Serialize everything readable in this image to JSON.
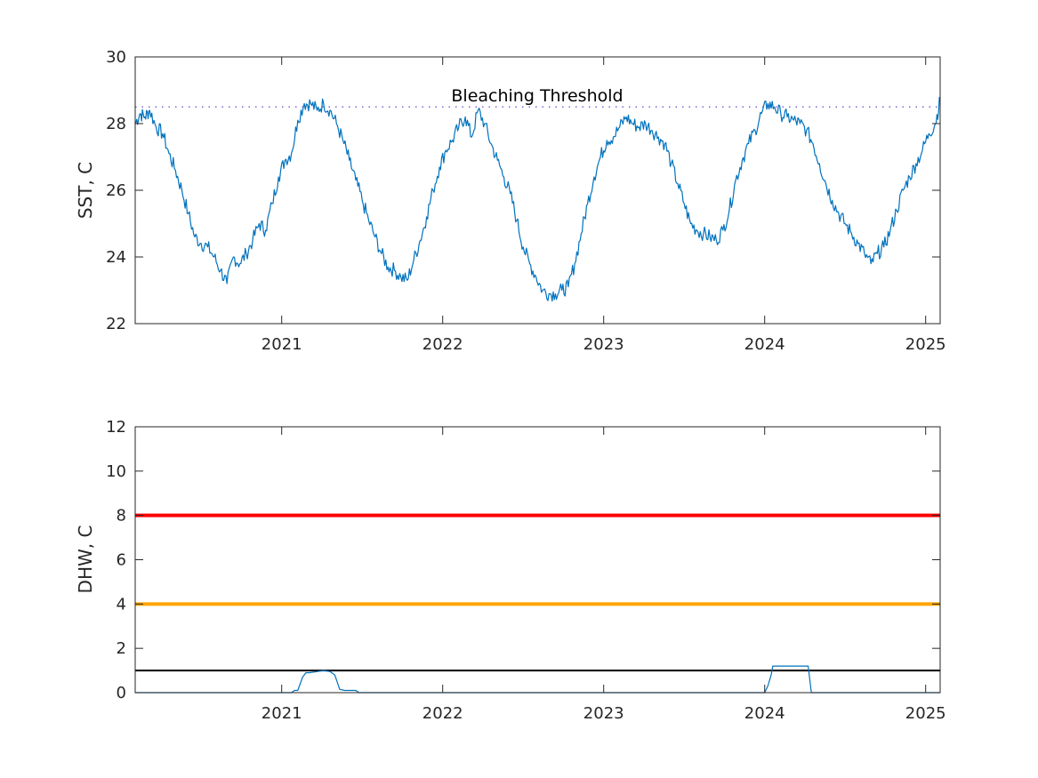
{
  "chart_data": [
    {
      "type": "line",
      "ylabel": "SST, C",
      "xlim": [
        2020.09,
        2025.09
      ],
      "ylim": [
        22,
        30
      ],
      "yticks": [
        22,
        24,
        26,
        28,
        30
      ],
      "xticks": [
        2021,
        2022,
        2023,
        2024,
        2025
      ],
      "xtick_labels": [
        "2021",
        "2022",
        "2023",
        "2024",
        "2025"
      ],
      "grid": false,
      "series_color": "#0072BD",
      "threshold": {
        "label": "Bleaching Threshold",
        "value": 28.5,
        "color": "#7E66D6",
        "style": "dotted"
      },
      "series": [
        {
          "x": [
            2020.09,
            2020.12,
            2020.15,
            2020.18,
            2020.22,
            2020.26,
            2020.3,
            2020.34,
            2020.38,
            2020.42,
            2020.46,
            2020.5,
            2020.54,
            2020.58,
            2020.62,
            2020.66,
            2020.7,
            2020.74,
            2020.78,
            2020.82,
            2020.86,
            2020.9,
            2020.94,
            2020.98,
            2021.02,
            2021.06,
            2021.1,
            2021.14,
            2021.18,
            2021.22,
            2021.26,
            2021.3,
            2021.34,
            2021.38,
            2021.42,
            2021.46,
            2021.5,
            2021.54,
            2021.58,
            2021.62,
            2021.66,
            2021.7,
            2021.74,
            2021.78,
            2021.82,
            2021.86,
            2021.9,
            2021.94,
            2021.98,
            2022.02,
            2022.06,
            2022.1,
            2022.14,
            2022.18,
            2022.22,
            2022.26,
            2022.3,
            2022.34,
            2022.38,
            2022.42,
            2022.46,
            2022.5,
            2022.54,
            2022.58,
            2022.62,
            2022.66,
            2022.7,
            2022.74,
            2022.78,
            2022.82,
            2022.86,
            2022.9,
            2022.94,
            2022.98,
            2023.02,
            2023.06,
            2023.1,
            2023.14,
            2023.18,
            2023.22,
            2023.26,
            2023.3,
            2023.34,
            2023.38,
            2023.42,
            2023.46,
            2023.5,
            2023.54,
            2023.58,
            2023.62,
            2023.66,
            2023.7,
            2023.74,
            2023.78,
            2023.82,
            2023.86,
            2023.9,
            2023.94,
            2023.98,
            2024.02,
            2024.06,
            2024.1,
            2024.14,
            2024.18,
            2024.22,
            2024.26,
            2024.3,
            2024.34,
            2024.38,
            2024.42,
            2024.46,
            2024.5,
            2024.54,
            2024.58,
            2024.62,
            2024.66,
            2024.7,
            2024.74,
            2024.78,
            2024.82,
            2024.86,
            2024.9,
            2024.94,
            2024.98,
            2025.02,
            2025.06,
            2025.09
          ],
          "values": [
            28.0,
            28.3,
            28.2,
            28.4,
            27.9,
            27.7,
            27.1,
            26.6,
            26.0,
            25.3,
            24.6,
            24.4,
            24.3,
            24.0,
            23.6,
            23.2,
            24.0,
            23.8,
            24.1,
            24.5,
            25.0,
            24.8,
            25.6,
            26.4,
            26.9,
            27.1,
            28.1,
            28.6,
            28.6,
            28.4,
            28.6,
            28.4,
            28.0,
            27.5,
            26.9,
            26.3,
            25.7,
            25.1,
            24.6,
            24.1,
            23.7,
            23.6,
            23.4,
            23.3,
            23.9,
            24.5,
            25.2,
            26.0,
            26.7,
            27.2,
            27.5,
            27.9,
            28.2,
            27.6,
            28.4,
            28.0,
            27.4,
            26.9,
            26.4,
            25.9,
            25.1,
            24.3,
            23.8,
            23.4,
            23.0,
            22.9,
            22.9,
            23.0,
            23.1,
            23.8,
            24.7,
            25.6,
            26.4,
            27.0,
            27.5,
            27.6,
            27.9,
            28.2,
            28.0,
            27.9,
            28.0,
            27.8,
            27.6,
            27.4,
            26.8,
            26.2,
            25.6,
            25.0,
            24.8,
            24.7,
            24.6,
            24.5,
            24.8,
            25.4,
            26.3,
            26.9,
            27.4,
            27.8,
            28.3,
            28.6,
            28.5,
            28.3,
            28.2,
            28.1,
            28.0,
            27.8,
            27.4,
            26.8,
            26.2,
            25.7,
            25.3,
            25.0,
            24.7,
            24.4,
            24.1,
            23.8,
            24.1,
            24.3,
            24.8,
            25.4,
            26.0,
            26.4,
            26.8,
            27.2,
            27.7,
            28.0,
            28.7
          ]
        }
      ]
    },
    {
      "type": "line",
      "ylabel": "DHW, C",
      "xlim": [
        2020.09,
        2025.09
      ],
      "ylim": [
        0,
        12
      ],
      "yticks": [
        0,
        2,
        4,
        6,
        8,
        10,
        12
      ],
      "xticks": [
        2021,
        2022,
        2023,
        2024,
        2025
      ],
      "xtick_labels": [
        "2021",
        "2022",
        "2023",
        "2024",
        "2025"
      ],
      "grid": false,
      "series_color": "#0072BD",
      "reference_lines": [
        {
          "value": 8,
          "color": "#FF0000",
          "width": 4
        },
        {
          "value": 4,
          "color": "#FFA500",
          "width": 4
        },
        {
          "value": 1,
          "color": "#000000",
          "width": 2
        }
      ],
      "series": [
        {
          "x": [
            2020.09,
            2021.06,
            2021.08,
            2021.1,
            2021.13,
            2021.15,
            2021.17,
            2021.22,
            2021.26,
            2021.3,
            2021.33,
            2021.36,
            2021.39,
            2021.42,
            2021.46,
            2021.48,
            2022.0,
            2023.0,
            2024.0,
            2024.02,
            2024.04,
            2024.05,
            2024.1,
            2024.2,
            2024.27,
            2024.29,
            2025.09
          ],
          "values": [
            0,
            0,
            0.1,
            0.1,
            0.7,
            0.9,
            0.9,
            0.95,
            1.0,
            0.95,
            0.8,
            0.15,
            0.1,
            0.1,
            0.1,
            0,
            0,
            0,
            0,
            0.3,
            0.8,
            1.2,
            1.2,
            1.2,
            1.2,
            0,
            0
          ]
        }
      ]
    }
  ]
}
